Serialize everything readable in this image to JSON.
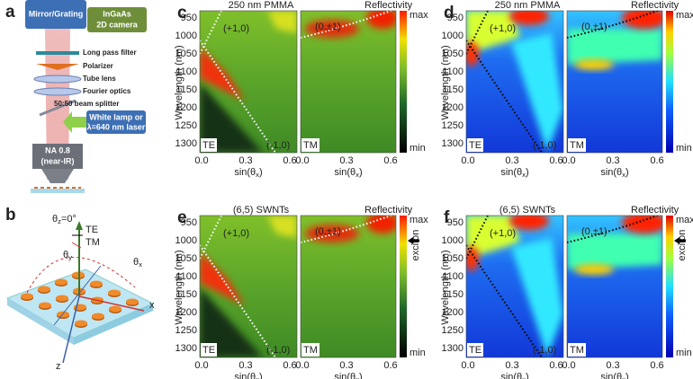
{
  "figure": {
    "panel_a": {
      "label": "a",
      "mirror": "Mirror/Grating",
      "camera": [
        "InGaAs",
        "2D camera"
      ],
      "filter": "Long pass filter",
      "polarizer": "Polarizer",
      "tube_lens": "Tube lens",
      "fourier": "Fourier optics",
      "splitter": "50:50 beam splitter",
      "source": [
        "White lamp or",
        "λ=640 nm laser"
      ],
      "objective": [
        "NA 0.8",
        "(near-IR)"
      ]
    },
    "panel_b": {
      "label": "b",
      "theta_z": {
        "base": "θ",
        "sub": "z",
        "end": "=0°"
      },
      "te": "TE",
      "tm": "TM",
      "theta_y": {
        "base": "θ",
        "sub": "y"
      },
      "theta_x": {
        "base": "θ",
        "sub": "x"
      },
      "x_axis": "x",
      "z_axis": "z"
    },
    "heatmaps": [
      {
        "label": "c",
        "title": "250 nm PMMA",
        "colorbar": "Reflectivity",
        "max": "max",
        "min": "min",
        "y_label": "Wavelength (nm)",
        "yticks": [
          950,
          1000,
          1050,
          1100,
          1150,
          1200,
          1250,
          1300
        ],
        "xticks": [
          "0.0",
          "0.3",
          "0.6"
        ],
        "x_label": {
          "base": "sin(θ",
          "sub": "x",
          "end": ")"
        },
        "orders": [
          "(+1,0)",
          "(0,±1)",
          "(-1,0)"
        ],
        "polarizations": [
          "TE",
          "TM"
        ],
        "colormap": "green"
      },
      {
        "label": "d",
        "title": "250 nm PMMA",
        "colorbar": "Reflectivity",
        "max": "max",
        "min": "min",
        "y_label": "Wavelength (nm)",
        "yticks": [
          950,
          1000,
          1050,
          1100,
          1150,
          1200,
          1250,
          1300
        ],
        "xticks": [
          "0.0",
          "0.3",
          "0.6"
        ],
        "x_label": {
          "base": "sin(θ",
          "sub": "x",
          "end": ")"
        },
        "orders": [
          "(+1,0)",
          "(0,±1)",
          "(-1,0)"
        ],
        "polarizations": [
          "TE",
          "TM"
        ],
        "colormap": "jet"
      },
      {
        "label": "e",
        "title": "(6,5) SWNTs",
        "colorbar": "Reflectivity",
        "max": "max",
        "min": "min",
        "y_label": "Wavelength (nm)",
        "yticks": [
          950,
          1000,
          1050,
          1100,
          1150,
          1200,
          1250,
          1300
        ],
        "xticks": [
          "0.0",
          "0.3",
          "0.6"
        ],
        "x_label": {
          "base": "sin(θ",
          "sub": "x",
          "end": ")"
        },
        "orders": [
          "(+1,0)",
          "(0,±1)",
          "(-1,0)"
        ],
        "polarizations": [
          "TE",
          "TM"
        ],
        "colormap": "green",
        "exciton": "exciton"
      },
      {
        "label": "f",
        "title": "(6,5) SWNTs",
        "colorbar": "Reflectivity",
        "max": "max",
        "min": "min",
        "y_label": "Wavelength (nm)",
        "yticks": [
          950,
          1000,
          1050,
          1100,
          1150,
          1200,
          1250,
          1300
        ],
        "xticks": [
          "0.0",
          "0.3",
          "0.6"
        ],
        "x_label": {
          "base": "sin(θ",
          "sub": "x",
          "end": ")"
        },
        "orders": [
          "(+1,0)",
          "(0,±1)",
          "(-1,0)"
        ],
        "polarizations": [
          "TE",
          "TM"
        ],
        "colormap": "jet",
        "exciton": "exciton"
      }
    ]
  }
}
